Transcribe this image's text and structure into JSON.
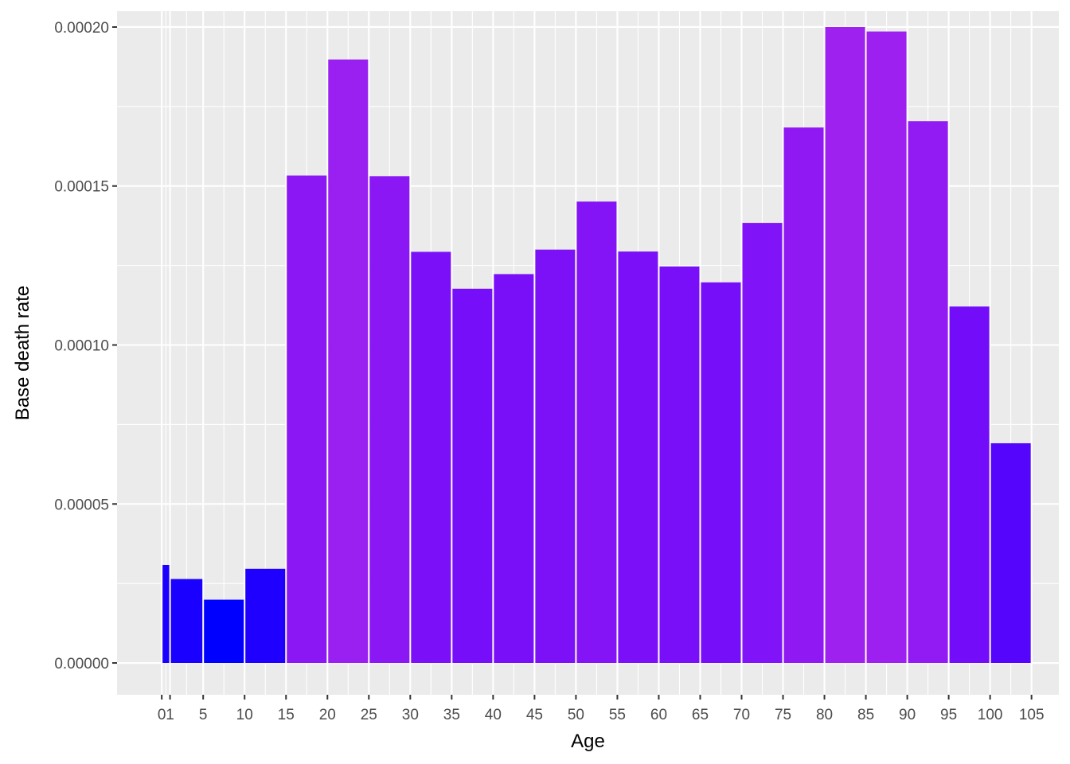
{
  "chart_data": {
    "type": "bar",
    "title": "",
    "xlabel": "Age",
    "ylabel": "Base death rate",
    "xlim": [
      -5.4,
      108.3
    ],
    "ylim": [
      -1e-05,
      0.000205
    ],
    "x_ticks": [
      {
        "value": 0,
        "label": "0"
      },
      {
        "value": 1,
        "label": "1"
      },
      {
        "value": 5,
        "label": "5"
      },
      {
        "value": 10,
        "label": "10"
      },
      {
        "value": 15,
        "label": "15"
      },
      {
        "value": 20,
        "label": "20"
      },
      {
        "value": 25,
        "label": "25"
      },
      {
        "value": 30,
        "label": "30"
      },
      {
        "value": 35,
        "label": "35"
      },
      {
        "value": 40,
        "label": "40"
      },
      {
        "value": 45,
        "label": "45"
      },
      {
        "value": 50,
        "label": "50"
      },
      {
        "value": 55,
        "label": "55"
      },
      {
        "value": 60,
        "label": "60"
      },
      {
        "value": 65,
        "label": "65"
      },
      {
        "value": 70,
        "label": "70"
      },
      {
        "value": 75,
        "label": "75"
      },
      {
        "value": 80,
        "label": "80"
      },
      {
        "value": 85,
        "label": "85"
      },
      {
        "value": 90,
        "label": "90"
      },
      {
        "value": 95,
        "label": "95"
      },
      {
        "value": 100,
        "label": "100"
      },
      {
        "value": 105,
        "label": "105"
      }
    ],
    "y_ticks": [
      {
        "value": 0,
        "label": "0.00000"
      },
      {
        "value": 5e-05,
        "label": "0.00005"
      },
      {
        "value": 0.0001,
        "label": "0.00010"
      },
      {
        "value": 0.00015,
        "label": "0.00015"
      },
      {
        "value": 0.0002,
        "label": "0.00020"
      }
    ],
    "grid": true,
    "legend": "none",
    "panel_color": "#ebebeb",
    "grid_color": "#ffffff",
    "bars": [
      {
        "age_start": 0,
        "age_end": 1,
        "value": 3.08e-05,
        "color": "#1a00ff"
      },
      {
        "age_start": 1,
        "age_end": 5,
        "value": 2.64e-05,
        "color": "#1a00ff"
      },
      {
        "age_start": 5,
        "age_end": 10,
        "value": 1.99e-05,
        "color": "#0000ff"
      },
      {
        "age_start": 10,
        "age_end": 15,
        "value": 2.96e-05,
        "color": "#1f00ff"
      },
      {
        "age_start": 15,
        "age_end": 20,
        "value": 0.0001533,
        "color": "#8a17f4"
      },
      {
        "age_start": 20,
        "age_end": 25,
        "value": 0.0001898,
        "color": "#9a1ff1"
      },
      {
        "age_start": 25,
        "age_end": 30,
        "value": 0.0001531,
        "color": "#8a17f4"
      },
      {
        "age_start": 30,
        "age_end": 35,
        "value": 0.0001293,
        "color": "#7b10f8"
      },
      {
        "age_start": 35,
        "age_end": 40,
        "value": 0.0001177,
        "color": "#760ef9"
      },
      {
        "age_start": 40,
        "age_end": 45,
        "value": 0.0001223,
        "color": "#780ff8"
      },
      {
        "age_start": 45,
        "age_end": 50,
        "value": 0.00013,
        "color": "#7c11f7"
      },
      {
        "age_start": 50,
        "age_end": 55,
        "value": 0.0001451,
        "color": "#8414f6"
      },
      {
        "age_start": 55,
        "age_end": 60,
        "value": 0.0001294,
        "color": "#7b10f8"
      },
      {
        "age_start": 60,
        "age_end": 65,
        "value": 0.0001247,
        "color": "#790ff8"
      },
      {
        "age_start": 65,
        "age_end": 70,
        "value": 0.0001197,
        "color": "#770ef9"
      },
      {
        "age_start": 70,
        "age_end": 75,
        "value": 0.0001384,
        "color": "#8013f7"
      },
      {
        "age_start": 75,
        "age_end": 80,
        "value": 0.0001684,
        "color": "#9019f3"
      },
      {
        "age_start": 80,
        "age_end": 85,
        "value": 0.0002,
        "color": "#9e21f0"
      },
      {
        "age_start": 85,
        "age_end": 90,
        "value": 0.0001986,
        "color": "#9d20f0"
      },
      {
        "age_start": 90,
        "age_end": 95,
        "value": 0.0001704,
        "color": "#921af2"
      },
      {
        "age_start": 95,
        "age_end": 100,
        "value": 0.0001121,
        "color": "#720cf9"
      },
      {
        "age_start": 100,
        "age_end": 105,
        "value": 6.91e-05,
        "color": "#5505fc"
      }
    ]
  }
}
